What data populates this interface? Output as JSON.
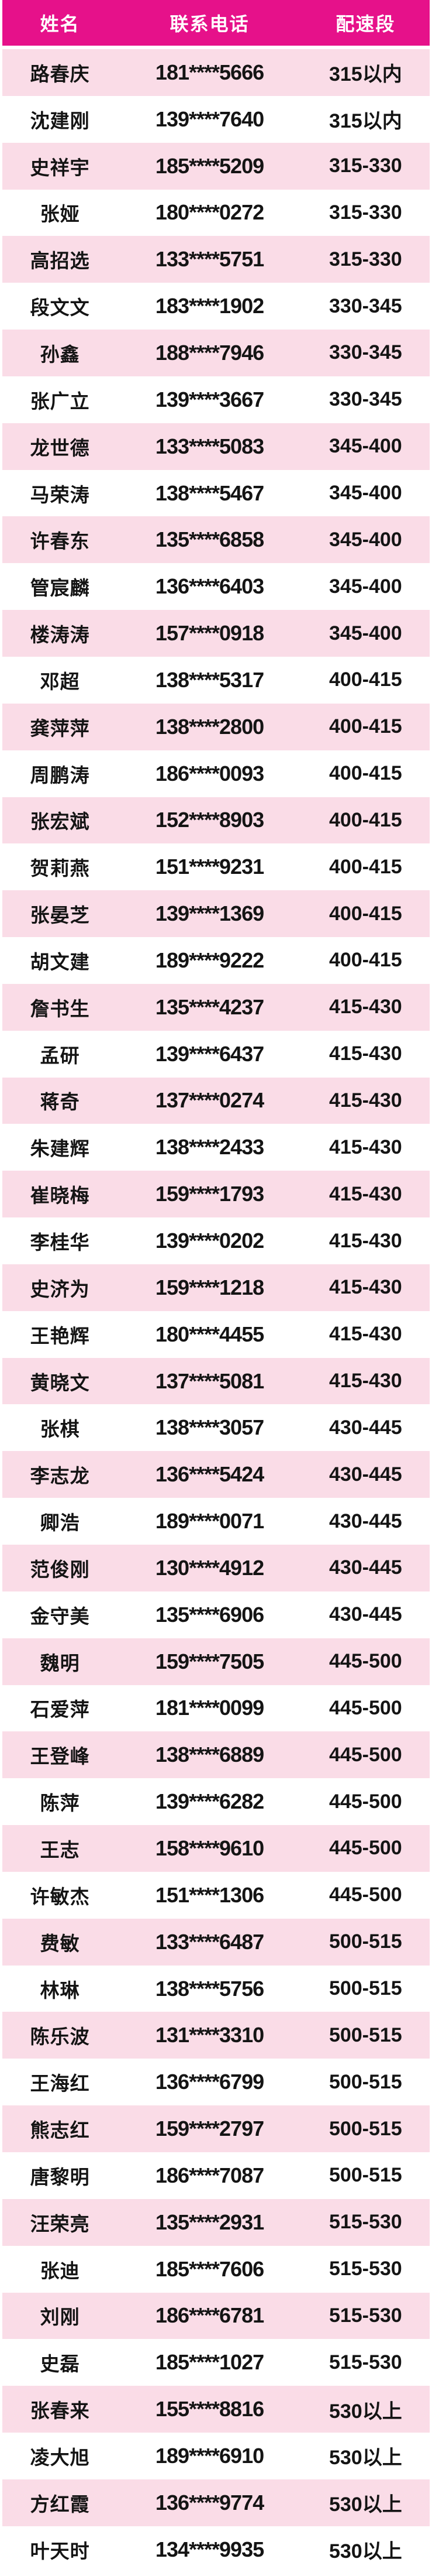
{
  "colors": {
    "header_bg": "#e6118a",
    "header_text": "#ffffff",
    "row_alt_bg": "#fadce7",
    "row_bg": "#ffffff",
    "body_text": "#141414"
  },
  "table": {
    "headers": [
      "姓名",
      "联系电话",
      "配速段"
    ],
    "rows": [
      {
        "name": "路春庆",
        "phone": "181****5666",
        "pace": "315以内"
      },
      {
        "name": "沈建刚",
        "phone": "139****7640",
        "pace": "315以内"
      },
      {
        "name": "史祥宇",
        "phone": "185****5209",
        "pace": "315-330"
      },
      {
        "name": "张娅",
        "phone": "180****0272",
        "pace": "315-330"
      },
      {
        "name": "高招选",
        "phone": "133****5751",
        "pace": "315-330"
      },
      {
        "name": "段文文",
        "phone": "183****1902",
        "pace": "330-345"
      },
      {
        "name": "孙鑫",
        "phone": "188****7946",
        "pace": "330-345"
      },
      {
        "name": "张广立",
        "phone": "139****3667",
        "pace": "330-345"
      },
      {
        "name": "龙世德",
        "phone": "133****5083",
        "pace": "345-400"
      },
      {
        "name": "马荣涛",
        "phone": "138****5467",
        "pace": "345-400"
      },
      {
        "name": "许春东",
        "phone": "135****6858",
        "pace": "345-400"
      },
      {
        "name": "管宸麟",
        "phone": "136****6403",
        "pace": "345-400"
      },
      {
        "name": "楼涛涛",
        "phone": "157****0918",
        "pace": "345-400"
      },
      {
        "name": "邓超",
        "phone": "138****5317",
        "pace": "400-415"
      },
      {
        "name": "龚萍萍",
        "phone": "138****2800",
        "pace": "400-415"
      },
      {
        "name": "周鹏涛",
        "phone": "186****0093",
        "pace": "400-415"
      },
      {
        "name": "张宏斌",
        "phone": "152****8903",
        "pace": "400-415"
      },
      {
        "name": "贺莉燕",
        "phone": "151****9231",
        "pace": "400-415"
      },
      {
        "name": "张晏芝",
        "phone": "139****1369",
        "pace": "400-415"
      },
      {
        "name": "胡文建",
        "phone": "189****9222",
        "pace": "400-415"
      },
      {
        "name": "詹书生",
        "phone": "135****4237",
        "pace": "415-430"
      },
      {
        "name": "孟研",
        "phone": "139****6437",
        "pace": "415-430"
      },
      {
        "name": "蒋奇",
        "phone": "137****0274",
        "pace": "415-430"
      },
      {
        "name": "朱建辉",
        "phone": "138****2433",
        "pace": "415-430"
      },
      {
        "name": "崔晓梅",
        "phone": "159****1793",
        "pace": "415-430"
      },
      {
        "name": "李桂华",
        "phone": "139****0202",
        "pace": "415-430"
      },
      {
        "name": "史济为",
        "phone": "159****1218",
        "pace": "415-430"
      },
      {
        "name": "王艳辉",
        "phone": "180****4455",
        "pace": "415-430"
      },
      {
        "name": "黄晓文",
        "phone": "137****5081",
        "pace": "415-430"
      },
      {
        "name": "张棋",
        "phone": "138****3057",
        "pace": "430-445"
      },
      {
        "name": "李志龙",
        "phone": "136****5424",
        "pace": "430-445"
      },
      {
        "name": "卿浩",
        "phone": "189****0071",
        "pace": "430-445"
      },
      {
        "name": "范俊刚",
        "phone": "130****4912",
        "pace": "430-445"
      },
      {
        "name": "金守美",
        "phone": "135****6906",
        "pace": "430-445"
      },
      {
        "name": "魏明",
        "phone": "159****7505",
        "pace": "445-500"
      },
      {
        "name": "石爱萍",
        "phone": "181****0099",
        "pace": "445-500"
      },
      {
        "name": "王登峰",
        "phone": "138****6889",
        "pace": "445-500"
      },
      {
        "name": "陈萍",
        "phone": "139****6282",
        "pace": "445-500"
      },
      {
        "name": "王志",
        "phone": "158****9610",
        "pace": "445-500"
      },
      {
        "name": "许敏杰",
        "phone": "151****1306",
        "pace": "445-500"
      },
      {
        "name": "费敏",
        "phone": "133****6487",
        "pace": "500-515"
      },
      {
        "name": "林琳",
        "phone": "138****5756",
        "pace": "500-515"
      },
      {
        "name": "陈乐波",
        "phone": "131****3310",
        "pace": "500-515"
      },
      {
        "name": "王海红",
        "phone": "136****6799",
        "pace": "500-515"
      },
      {
        "name": "熊志红",
        "phone": "159****2797",
        "pace": "500-515"
      },
      {
        "name": "唐黎明",
        "phone": "186****7087",
        "pace": "500-515"
      },
      {
        "name": "汪荣亮",
        "phone": "135****2931",
        "pace": "515-530"
      },
      {
        "name": "张迪",
        "phone": "185****7606",
        "pace": "515-530"
      },
      {
        "name": "刘刚",
        "phone": "186****6781",
        "pace": "515-530"
      },
      {
        "name": "史磊",
        "phone": "185****1027",
        "pace": "515-530"
      },
      {
        "name": "张春来",
        "phone": "155****8816",
        "pace": "530以上"
      },
      {
        "name": "凌大旭",
        "phone": "189****6910",
        "pace": "530以上"
      },
      {
        "name": "方红霞",
        "phone": "136****9774",
        "pace": "530以上"
      },
      {
        "name": "叶天时",
        "phone": "134****9935",
        "pace": "530以上"
      }
    ]
  }
}
